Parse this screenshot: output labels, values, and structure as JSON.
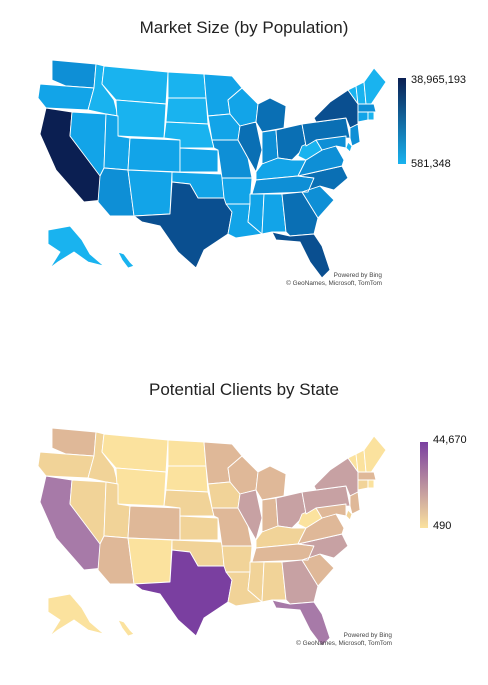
{
  "maps": [
    {
      "title": "Market Size (by Population)",
      "legend": {
        "max": "38,965,193",
        "min": "581,348",
        "max_color": "#0b1f52",
        "min_color": "#19b3ef"
      },
      "credit": {
        "line1": "Powered by Bing",
        "line2": "© GeoNames, Microsoft, TomTom"
      },
      "palette": {
        "1": "#19b3ef",
        "2": "#12a4e8",
        "3": "#0e8fd6",
        "4": "#0a6fb4",
        "5": "#0a4f90",
        "6": "#0b1f52"
      },
      "states": {
        "WA": 3,
        "OR": 2,
        "CA": 6,
        "NV": 2,
        "ID": 1,
        "MT": 1,
        "WY": 1,
        "UT": 2,
        "AZ": 3,
        "CO": 2,
        "NM": 2,
        "ND": 1,
        "SD": 1,
        "NE": 1,
        "KS": 2,
        "OK": 2,
        "TX": 5,
        "MN": 2,
        "IA": 2,
        "MO": 3,
        "AR": 2,
        "LA": 2,
        "WI": 2,
        "IL": 4,
        "MI": 4,
        "IN": 3,
        "OH": 4,
        "KY": 2,
        "TN": 3,
        "MS": 2,
        "AL": 2,
        "GA": 4,
        "FL": 5,
        "SC": 3,
        "NC": 4,
        "VA": 3,
        "WV": 1,
        "PA": 4,
        "NY": 5,
        "VT": 1,
        "NH": 1,
        "ME": 1,
        "MA": 3,
        "CT": 2,
        "RI": 1,
        "NJ": 3,
        "DE": 1,
        "MD": 3,
        "AK": 1,
        "HI": 1
      }
    },
    {
      "title": "Potential Clients by State",
      "legend": {
        "max": "44,670",
        "min": "490",
        "max_color": "#7a3fa0",
        "min_color": "#fbe29e"
      },
      "credit": {
        "line1": "Powered by Bing",
        "line2": "© GeoNames, Microsoft, TomTom"
      },
      "palette": {
        "1": "#fbe29e",
        "2": "#f1d398",
        "3": "#dfb898",
        "4": "#c7a1a3",
        "5": "#a77aa8",
        "6": "#7a3fa0"
      },
      "states": {
        "WA": 3,
        "OR": 2,
        "CA": 5,
        "NV": 2,
        "ID": 2,
        "MT": 1,
        "WY": 1,
        "UT": 2,
        "AZ": 3,
        "CO": 3,
        "NM": 1,
        "ND": 1,
        "SD": 1,
        "NE": 2,
        "KS": 2,
        "OK": 2,
        "TX": 6,
        "MN": 3,
        "IA": 2,
        "MO": 3,
        "AR": 2,
        "LA": 2,
        "WI": 3,
        "IL": 4,
        "MI": 3,
        "IN": 3,
        "OH": 4,
        "KY": 2,
        "TN": 3,
        "MS": 2,
        "AL": 2,
        "GA": 4,
        "FL": 5,
        "SC": 3,
        "NC": 4,
        "VA": 3,
        "WV": 1,
        "PA": 4,
        "NY": 4,
        "VT": 1,
        "NH": 1,
        "ME": 1,
        "MA": 3,
        "CT": 2,
        "RI": 1,
        "NJ": 3,
        "DE": 2,
        "MD": 3,
        "AK": 1,
        "HI": 1
      }
    }
  ]
}
